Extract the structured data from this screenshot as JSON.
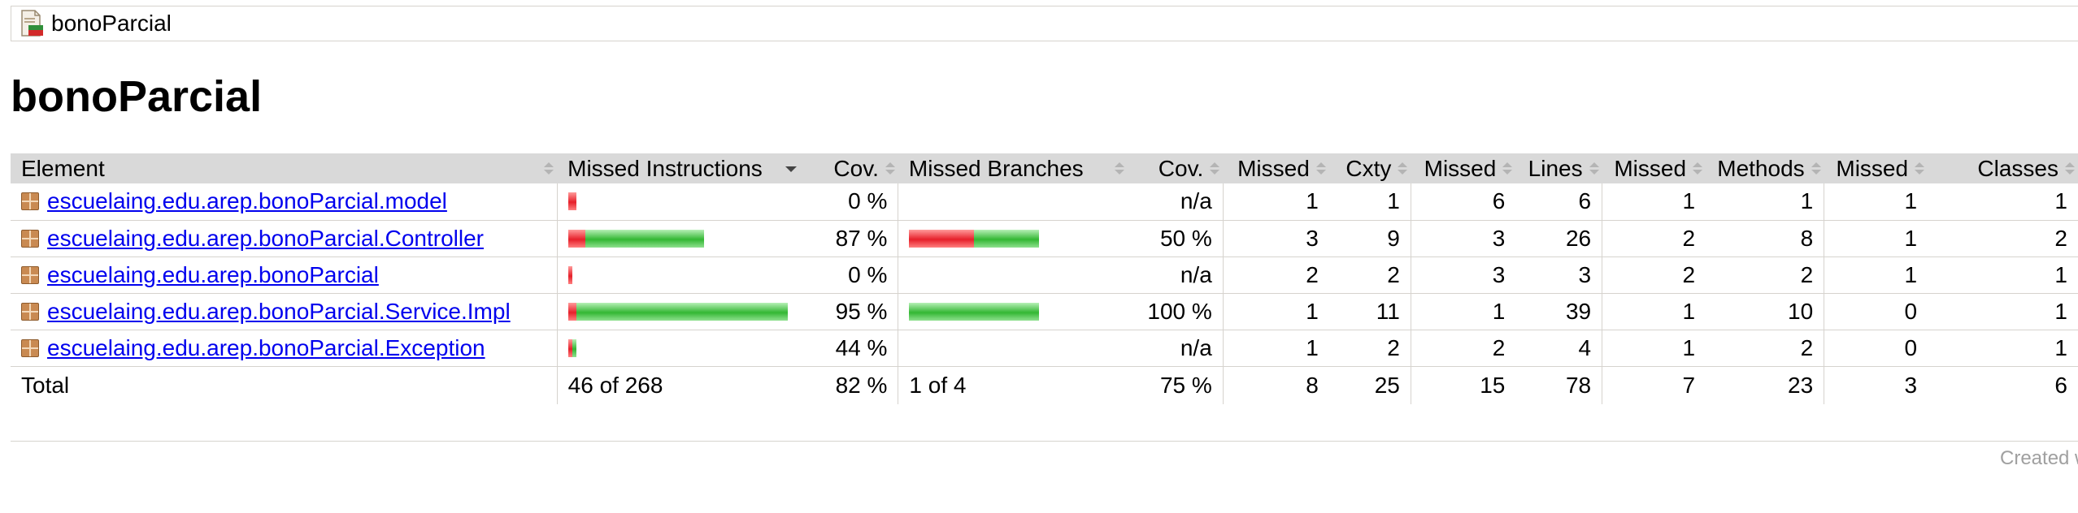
{
  "breadcrumb": {
    "label": "bonoParcial"
  },
  "page_title": "bonoParcial",
  "table": {
    "headers": {
      "element": "Element",
      "missed_instructions": "Missed Instructions",
      "cov_instr": "Cov.",
      "missed_branches": "Missed Branches",
      "cov_branch": "Cov.",
      "missed_cxty": "Missed",
      "cxty": "Cxty",
      "missed_lines": "Missed",
      "lines": "Lines",
      "missed_methods": "Missed",
      "methods": "Methods",
      "missed_classes": "Missed",
      "classes": "Classes"
    },
    "rows": [
      {
        "name": "escuelaing.edu.arep.bonoParcial.model",
        "instr_bar": {
          "missed": 4,
          "covered": 0
        },
        "cov_instr": "0 %",
        "branch_bar": null,
        "cov_branch": "n/a",
        "missed_cxty": "1",
        "cxty": "1",
        "missed_lines": "6",
        "lines": "6",
        "missed_methods": "1",
        "methods": "1",
        "missed_classes": "1",
        "classes": "1"
      },
      {
        "name": "escuelaing.edu.arep.bonoParcial.Controller",
        "instr_bar": {
          "missed": 8,
          "covered": 54
        },
        "cov_instr": "87 %",
        "branch_bar": {
          "missed": 2,
          "covered": 2
        },
        "cov_branch": "50 %",
        "missed_cxty": "3",
        "cxty": "9",
        "missed_lines": "3",
        "lines": "26",
        "missed_methods": "2",
        "methods": "8",
        "missed_classes": "1",
        "classes": "2"
      },
      {
        "name": "escuelaing.edu.arep.bonoParcial",
        "instr_bar": {
          "missed": 2,
          "covered": 0
        },
        "cov_instr": "0 %",
        "branch_bar": null,
        "cov_branch": "n/a",
        "missed_cxty": "2",
        "cxty": "2",
        "missed_lines": "3",
        "lines": "3",
        "missed_methods": "2",
        "methods": "2",
        "missed_classes": "1",
        "classes": "1"
      },
      {
        "name": "escuelaing.edu.arep.bonoParcial.Service.Impl",
        "instr_bar": {
          "missed": 4,
          "covered": 96
        },
        "cov_instr": "95 %",
        "branch_bar": {
          "missed": 0,
          "covered": 4
        },
        "cov_branch": "100 %",
        "missed_cxty": "1",
        "cxty": "11",
        "missed_lines": "1",
        "lines": "39",
        "missed_methods": "1",
        "methods": "10",
        "missed_classes": "0",
        "classes": "1"
      },
      {
        "name": "escuelaing.edu.arep.bonoParcial.Exception",
        "instr_bar": {
          "missed": 2,
          "covered": 2
        },
        "cov_instr": "44 %",
        "branch_bar": null,
        "cov_branch": "n/a",
        "missed_cxty": "1",
        "cxty": "2",
        "missed_lines": "2",
        "lines": "4",
        "missed_methods": "1",
        "methods": "2",
        "missed_classes": "0",
        "classes": "1"
      }
    ],
    "bar_scale_max": 100,
    "total": {
      "label": "Total",
      "instr": "46 of 268",
      "cov_instr": "82 %",
      "branches": "1 of 4",
      "cov_branch": "75 %",
      "missed_cxty": "8",
      "cxty": "25",
      "missed_lines": "15",
      "lines": "78",
      "missed_methods": "7",
      "methods": "23",
      "missed_classes": "3",
      "classes": "6"
    }
  },
  "footer": {
    "created_text": "Created w"
  },
  "colors": {
    "link": "#0000ee",
    "header_bg": "#d9d9d9",
    "missed_bar": "#e6202a",
    "covered_bar": "#33b733"
  },
  "icons": {
    "breadcrumb": "report-icon",
    "package": "package-icon"
  }
}
